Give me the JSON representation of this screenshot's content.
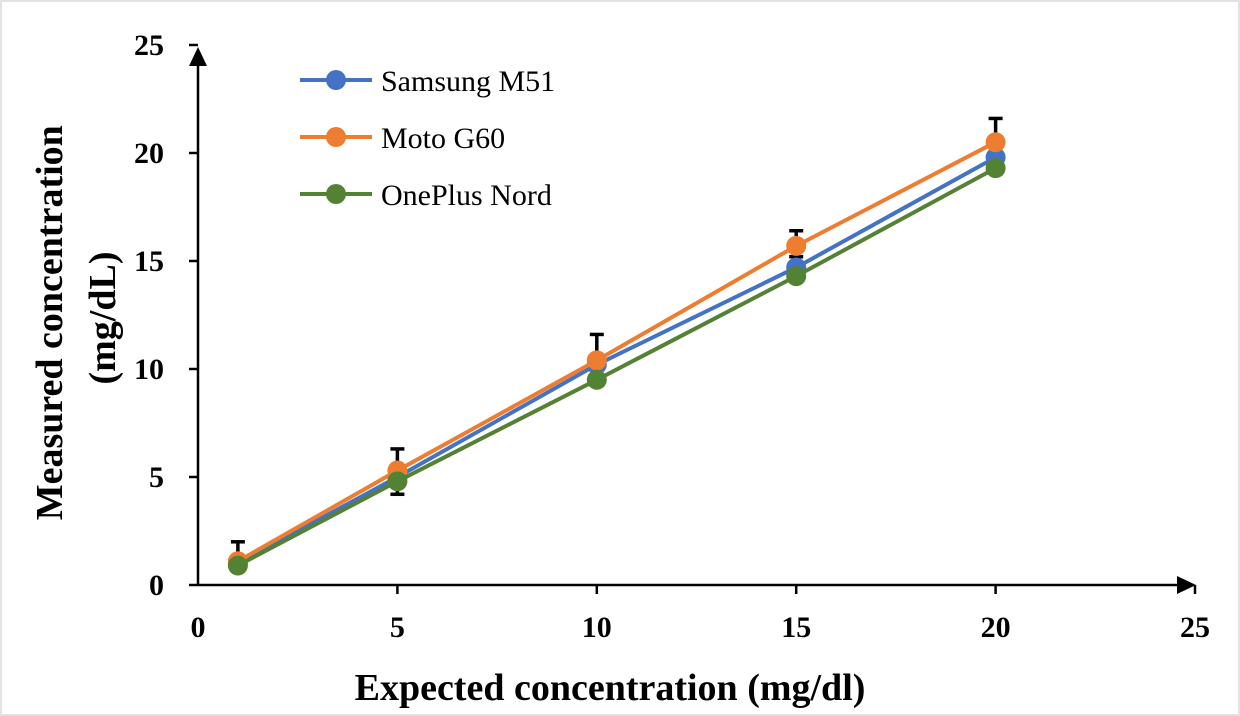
{
  "chart_data": {
    "type": "line",
    "title": "",
    "xlabel": "Expected concentration (mg/dl)",
    "ylabel_lines": [
      "Measured concentration",
      "(mg/dL)"
    ],
    "xlim": [
      0,
      25
    ],
    "ylim": [
      0,
      25
    ],
    "x_ticks": [
      0,
      5,
      10,
      15,
      20,
      25
    ],
    "y_ticks": [
      0,
      5,
      10,
      15,
      20,
      25
    ],
    "x": [
      1,
      5,
      10,
      15,
      20
    ],
    "grid": false,
    "legend_position": "top-left",
    "series": [
      {
        "name": "Samsung M51",
        "color": "#4472c4",
        "values": [
          1.0,
          5.0,
          10.2,
          14.7,
          19.8
        ],
        "error_plus": [
          0.0,
          0.0,
          0.0,
          0.5,
          0.0
        ]
      },
      {
        "name": "Moto G60",
        "color": "#ed7d31",
        "values": [
          1.1,
          5.3,
          10.4,
          15.7,
          20.5
        ],
        "error_plus": [
          0.9,
          1.0,
          1.2,
          0.7,
          1.1
        ]
      },
      {
        "name": "OnePlus Nord",
        "color": "#548235",
        "values": [
          0.9,
          4.8,
          9.5,
          14.3,
          19.3
        ],
        "error_plus": [
          0.0,
          -0.6,
          0.0,
          0.0,
          0.0
        ]
      }
    ]
  }
}
